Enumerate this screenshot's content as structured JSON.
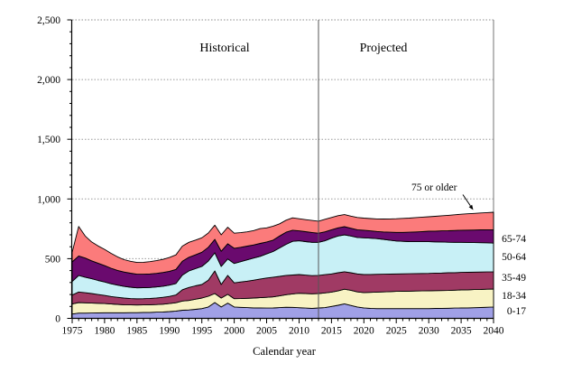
{
  "chart_data": {
    "type": "area",
    "stacked": true,
    "xlabel": "Calendar year",
    "region_labels": {
      "historical": "Historical",
      "projected": "Projected"
    },
    "divider_year": 2013,
    "annotation": {
      "text": "75 or older"
    },
    "x_start": 1975,
    "x_end": 2040,
    "y_axis": {
      "min": 0,
      "max": 2500,
      "major_step": 500,
      "minor_step": 100,
      "tick_labels": [
        "0",
        "500",
        "1,000",
        "1,500",
        "2,000",
        "2,500"
      ]
    },
    "x_axis": {
      "major_step": 5,
      "minor_step": 1,
      "tick_labels": [
        "1975",
        "1980",
        "1985",
        "1990",
        "1995",
        "2000",
        "2005",
        "2010",
        "2015",
        "2020",
        "2025",
        "2030",
        "2035",
        "2040"
      ]
    },
    "grid": true,
    "legend_position": "right-edge-labels",
    "colors": {
      "outline": "#000000",
      "gridline": "#999999",
      "plot_border": "#8c8c8c",
      "divider": "#555555",
      "axis": "#000000"
    },
    "series": [
      {
        "name": "0-17",
        "color": "#a0a0e6",
        "values": [
          36,
          44,
          44,
          45,
          46,
          47,
          47,
          47,
          47,
          48,
          48,
          49,
          50,
          52,
          54,
          57,
          61,
          68,
          70,
          76,
          82,
          95,
          132,
          95,
          128,
          95,
          92,
          90,
          88,
          87,
          86,
          87,
          90,
          93,
          92,
          89,
          86,
          84,
          87,
          90,
          100,
          110,
          122,
          108,
          95,
          88,
          84,
          82,
          82,
          82,
          82,
          82,
          82,
          82,
          82,
          82,
          83,
          84,
          85,
          86,
          87,
          88,
          89,
          91,
          93,
          95
        ]
      },
      {
        "name": "18-34",
        "color": "#f8f3c4",
        "values": [
          84,
          88,
          86,
          83,
          80,
          77,
          73,
          70,
          67,
          65,
          64,
          64,
          64,
          64,
          65,
          67,
          70,
          77,
          80,
          84,
          88,
          90,
          76,
          75,
          73,
          70,
          74,
          78,
          82,
          86,
          90,
          93,
          98,
          105,
          113,
          121,
          122,
          122,
          121,
          123,
          120,
          120,
          122,
          127,
          127,
          128,
          134,
          138,
          140,
          142,
          144,
          145,
          146,
          147,
          148,
          149,
          149,
          149,
          149,
          150,
          151,
          151,
          152,
          151,
          151,
          151
        ]
      },
      {
        "name": "35-49",
        "color": "#a03a64",
        "values": [
          75,
          89,
          85,
          80,
          74,
          68,
          63,
          59,
          56,
          53,
          52,
          52,
          53,
          55,
          57,
          60,
          65,
          95,
          109,
          112,
          114,
          135,
          189,
          114,
          159,
          132,
          139,
          144,
          150,
          157,
          162,
          165,
          164,
          162,
          158,
          157,
          154,
          152,
          152,
          153,
          152,
          152,
          146,
          147,
          150,
          151,
          150,
          149,
          148,
          147,
          146,
          146,
          146,
          146,
          146,
          146,
          147,
          147,
          148,
          147,
          147,
          147,
          146,
          146,
          145,
          144
        ]
      },
      {
        "name": "50-64",
        "color": "#c8f0f6",
        "values": [
          114,
          138,
          130,
          124,
          118,
          113,
          107,
          102,
          98,
          95,
          92,
          92,
          92,
          92,
          93,
          94,
          96,
          122,
          138,
          144,
          151,
          160,
          152,
          151,
          138,
          163,
          170,
          178,
          185,
          190,
          202,
          215,
          238,
          260,
          282,
          283,
          281,
          279,
          277,
          284,
          300,
          308,
          310,
          308,
          306,
          308,
          304,
          299,
          292,
          284,
          276,
          272,
          269,
          267,
          266,
          265,
          262,
          260,
          256,
          254,
          252,
          250,
          248,
          246,
          244,
          240
        ]
      },
      {
        "name": "65-74",
        "color": "#6a0a6e",
        "values": [
          164,
          164,
          160,
          150,
          144,
          137,
          130,
          124,
          120,
          117,
          114,
          113,
          113,
          114,
          115,
          116,
          118,
          116,
          114,
          116,
          119,
          115,
          113,
          127,
          127,
          127,
          120,
          115,
          110,
          108,
          100,
          95,
          100,
          102,
          93,
          83,
          83,
          82,
          76,
          75,
          70,
          68,
          68,
          65,
          64,
          63,
          61,
          60,
          62,
          67,
          72,
          75,
          79,
          82,
          85,
          88,
          90,
          93,
          96,
          99,
          101,
          103,
          105,
          107,
          109,
          113
        ]
      },
      {
        "name": "75 or older",
        "color": "#fb7b7b",
        "values": [
          81,
          247,
          185,
          158,
          145,
          136,
          125,
          113,
          104,
          100,
          98,
          100,
          103,
          106,
          110,
          116,
          122,
          127,
          126,
          123,
          121,
          120,
          119,
          138,
          138,
          126,
          123,
          120,
          120,
          124,
          118,
          117,
          102,
          100,
          104,
          101,
          101,
          101,
          101,
          105,
          103,
          102,
          101,
          101,
          103,
          102,
          103,
          105,
          108,
          111,
          114,
          117,
          118,
          120,
          121,
          121,
          124,
          126,
          129,
          132,
          134,
          137,
          139,
          142,
          144,
          146
        ]
      }
    ]
  }
}
